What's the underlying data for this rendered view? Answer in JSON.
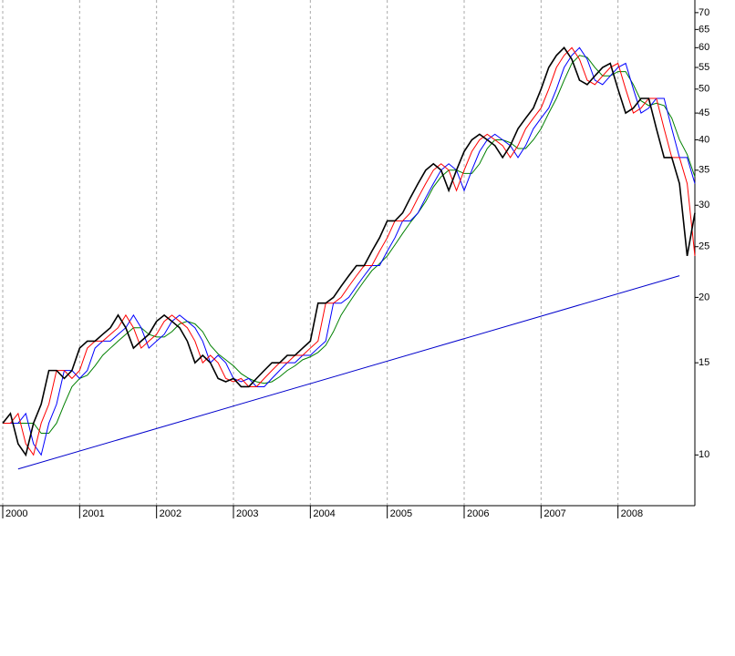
{
  "chart_data": {
    "type": "line",
    "log_scale": true,
    "grid": true,
    "x": [
      2000.0,
      2000.1,
      2000.2,
      2000.3,
      2000.4,
      2000.5,
      2000.6,
      2000.7,
      2000.8,
      2000.9,
      2001.0,
      2001.1,
      2001.2,
      2001.3,
      2001.4,
      2001.5,
      2001.6,
      2001.7,
      2001.8,
      2001.9,
      2002.0,
      2002.1,
      2002.2,
      2002.3,
      2002.4,
      2002.5,
      2002.6,
      2002.7,
      2002.8,
      2002.9,
      2003.0,
      2003.1,
      2003.2,
      2003.3,
      2003.4,
      2003.5,
      2003.6,
      2003.7,
      2003.8,
      2003.9,
      2004.0,
      2004.1,
      2004.2,
      2004.3,
      2004.4,
      2004.5,
      2004.6,
      2004.7,
      2004.8,
      2004.9,
      2005.0,
      2005.1,
      2005.2,
      2005.3,
      2005.4,
      2005.5,
      2005.6,
      2005.7,
      2005.8,
      2005.9,
      2006.0,
      2006.1,
      2006.2,
      2006.3,
      2006.4,
      2006.5,
      2006.6,
      2006.7,
      2006.8,
      2006.9,
      2007.0,
      2007.1,
      2007.2,
      2007.3,
      2007.4,
      2007.5,
      2007.6,
      2007.7,
      2007.8,
      2007.9,
      2008.0,
      2008.1,
      2008.2,
      2008.3,
      2008.4,
      2008.5,
      2008.6,
      2008.7,
      2008.8,
      2008.9,
      2009.0
    ],
    "series": [
      {
        "color": "#000000",
        "values": [
          11.5,
          12,
          10.5,
          10,
          11.5,
          12.5,
          14.5,
          14.5,
          14,
          14.5,
          16,
          16.5,
          16.5,
          17,
          17.5,
          18.5,
          17.5,
          16,
          16.5,
          17,
          18,
          18.5,
          18,
          17.5,
          16.5,
          15,
          15.5,
          15,
          14,
          13.8,
          14,
          13.5,
          13.5,
          14,
          14.5,
          15,
          15,
          15.5,
          15.5,
          16,
          16.5,
          19.5,
          19.5,
          20,
          21,
          22,
          23,
          23,
          24.5,
          26,
          28,
          28,
          29,
          31,
          33,
          35,
          36,
          35,
          32,
          35,
          38,
          40,
          41,
          40,
          39,
          37,
          39,
          42,
          44,
          46,
          50,
          55,
          58,
          60,
          57,
          52,
          51,
          53,
          55,
          56,
          50,
          45,
          46,
          48,
          48,
          42,
          37,
          37,
          33,
          24,
          29
        ]
      },
      {
        "color": "#ff0000",
        "values": [
          11.5,
          11.5,
          12,
          10.5,
          10,
          11.5,
          12.5,
          14.5,
          14.5,
          14,
          14.5,
          16,
          16.5,
          16.5,
          17,
          17.5,
          18.5,
          17.5,
          16,
          16.5,
          17,
          18,
          18.5,
          18,
          17.5,
          16.5,
          15,
          15.5,
          15,
          14,
          13.8,
          14,
          13.5,
          13.5,
          14,
          14.5,
          15,
          15,
          15.5,
          15.5,
          16,
          16.5,
          19.5,
          19.5,
          20,
          21,
          22,
          23,
          23,
          24.5,
          26,
          28,
          28,
          29,
          31,
          33,
          35,
          36,
          35,
          32,
          35,
          38,
          40,
          41,
          40,
          39,
          37,
          39,
          42,
          44,
          46,
          50,
          55,
          58,
          60,
          57,
          52,
          51,
          53,
          55,
          56,
          50,
          45,
          46,
          48,
          48,
          42,
          37,
          37,
          33,
          24
        ]
      },
      {
        "color": "#0000ff",
        "values": [
          11.5,
          11.5,
          11.5,
          12,
          10.5,
          10,
          11.5,
          12.5,
          14.5,
          14.5,
          14,
          14.5,
          16,
          16.5,
          16.5,
          17,
          17.5,
          18.5,
          17.5,
          16,
          16.5,
          17,
          18,
          18.5,
          18,
          17.5,
          16.5,
          15,
          15.5,
          15,
          14,
          13.8,
          14,
          13.5,
          13.5,
          14,
          14.5,
          15,
          15,
          15.5,
          15.5,
          16,
          16.5,
          19.5,
          19.5,
          20,
          21,
          22,
          23,
          23,
          24.5,
          26,
          28,
          28,
          29,
          31,
          33,
          35,
          36,
          35,
          32,
          35,
          38,
          40,
          41,
          40,
          39,
          37,
          39,
          42,
          44,
          46,
          50,
          55,
          58,
          60,
          57,
          52,
          51,
          53,
          55,
          56,
          50,
          45,
          46,
          48,
          48,
          42,
          37,
          37,
          33
        ]
      },
      {
        "color": "#008000",
        "values": [
          11.5,
          11.5,
          11.5,
          11.5,
          11.5,
          11,
          11,
          11.5,
          12.5,
          13.5,
          14,
          14.2,
          14.8,
          15.5,
          16,
          16.5,
          17,
          17.5,
          17.5,
          17,
          16.8,
          16.8,
          17.2,
          17.8,
          18,
          17.8,
          17.2,
          16.2,
          15.6,
          15.2,
          14.8,
          14.3,
          14,
          13.8,
          13.7,
          13.8,
          14.1,
          14.5,
          14.8,
          15.2,
          15.4,
          15.7,
          16.2,
          17.2,
          18.5,
          19.5,
          20.5,
          21.5,
          22.5,
          23.2,
          24,
          25.2,
          26.5,
          27.8,
          29,
          30.5,
          32.5,
          34,
          35,
          35,
          34.5,
          34.5,
          36,
          38.5,
          40,
          40,
          39.5,
          38.5,
          38.5,
          40,
          42,
          45,
          48,
          52,
          56,
          58,
          57.5,
          55,
          53,
          53,
          54,
          54,
          51,
          47.5,
          46.5,
          47,
          46.5,
          44,
          40,
          37.5,
          34
        ]
      }
    ],
    "trendline": {
      "color": "#0000cc",
      "x": [
        2000.2,
        2008.8
      ],
      "values": [
        9.4,
        22
      ]
    },
    "xlim": [
      2000,
      2009
    ],
    "xticks": [
      2000,
      2001,
      2002,
      2003,
      2004,
      2005,
      2006,
      2007,
      2008
    ],
    "ylim": [
      8,
      74
    ],
    "yticks": [
      10,
      15,
      20,
      25,
      30,
      35,
      40,
      45,
      50,
      55,
      60,
      65,
      70
    ]
  }
}
